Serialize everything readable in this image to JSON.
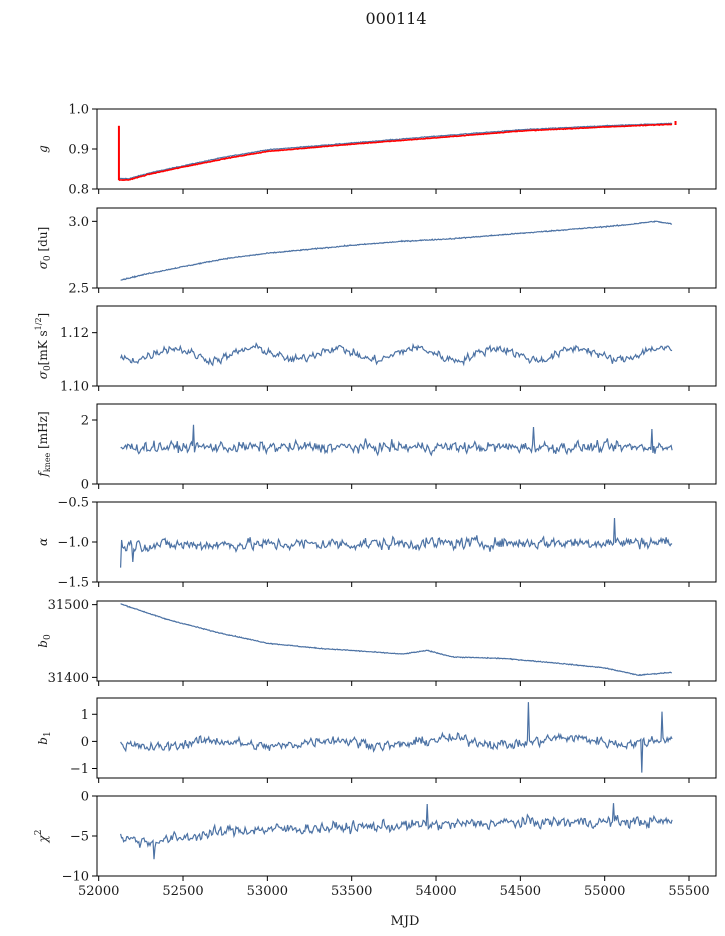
{
  "figure": {
    "title": "000114",
    "xlabel": "MJD"
  },
  "chart_data": {
    "type": "line",
    "shared_x": {
      "label": "MJD",
      "range": [
        51990,
        55660
      ],
      "ticks": [
        52000,
        52500,
        53000,
        53500,
        54000,
        54500,
        55000,
        55500
      ],
      "tick_labels": [
        "52000",
        "52500",
        "53000",
        "53500",
        "54000",
        "54500",
        "55000",
        "55500"
      ]
    },
    "series_color": "#4c72a4",
    "overlay_color": "#ff0000",
    "panels": [
      {
        "id": "g",
        "ylabel": "g",
        "ylim": [
          0.8,
          1.0
        ],
        "yticks": [
          0.8,
          0.9,
          1.0
        ],
        "ytick_labels": [
          "0.8",
          "0.9",
          "1.0"
        ],
        "style": "smooth",
        "x": [
          52120,
          52180,
          52300,
          52500,
          52750,
          53000,
          53500,
          54000,
          54500,
          55000,
          55400
        ],
        "y": [
          0.826,
          0.826,
          0.84,
          0.858,
          0.88,
          0.898,
          0.915,
          0.932,
          0.948,
          0.958,
          0.964
        ],
        "noise": 0.001,
        "overlay": {
          "name": "",
          "color": "#ff0000",
          "x": [
            52120,
            52180,
            52300,
            52500,
            52750,
            53000,
            53500,
            54000,
            54500,
            55000,
            55400
          ],
          "y": [
            0.822,
            0.823,
            0.837,
            0.855,
            0.876,
            0.894,
            0.912,
            0.928,
            0.945,
            0.955,
            0.962
          ],
          "spikes": [
            {
              "x": 52120,
              "from": 0.822,
              "to": 0.958
            },
            {
              "x": 55420,
              "from": 0.96,
              "to": 0.97
            }
          ]
        }
      },
      {
        "id": "sigma0_du",
        "ylabel": "σ0 [du]",
        "ylim": [
          2.5,
          3.1
        ],
        "yticks": [
          2.5,
          3.0
        ],
        "ytick_labels": [
          "2.5",
          "3.0"
        ],
        "style": "smooth",
        "x": [
          52130,
          52300,
          52500,
          52750,
          53000,
          53250,
          53500,
          53800,
          54100,
          54500,
          54800,
          55100,
          55300,
          55400
        ],
        "y": [
          2.56,
          2.61,
          2.66,
          2.72,
          2.76,
          2.79,
          2.82,
          2.85,
          2.87,
          2.91,
          2.94,
          2.97,
          3.0,
          2.98
        ],
        "noise": 0.004
      },
      {
        "id": "sigma0_mk",
        "ylabel": "σ0[mK s^1/2]",
        "ylim": [
          1.1,
          1.13
        ],
        "yticks": [
          1.1,
          1.12
        ],
        "ytick_labels": [
          "1.10",
          "1.12"
        ],
        "style": "noisy",
        "x": [
          52130,
          55400
        ],
        "y": [
          1.112,
          1.112
        ],
        "noise": 0.0015,
        "waves": [
          {
            "period": 480,
            "amp": 0.0022
          }
        ]
      },
      {
        "id": "fknee",
        "ylabel": "fknee [mHz]",
        "ylim": [
          0,
          2.5
        ],
        "yticks": [
          0,
          2
        ],
        "ytick_labels": [
          "0",
          "2"
        ],
        "style": "noisy",
        "x": [
          52130,
          55400
        ],
        "y": [
          1.15,
          1.15
        ],
        "noise": 0.16,
        "spikes": [
          {
            "x": 52560,
            "y": 1.85
          },
          {
            "x": 54580,
            "y": 1.78
          },
          {
            "x": 55280,
            "y": 1.72
          }
        ]
      },
      {
        "id": "alpha",
        "ylabel": "α",
        "ylim": [
          -1.5,
          -0.5
        ],
        "yticks": [
          -1.5,
          -1.0,
          -0.5
        ],
        "ytick_labels": [
          "−1.5",
          "−1.0",
          "−0.5"
        ],
        "style": "noisy",
        "x": [
          52130,
          55400
        ],
        "y": [
          -1.04,
          -1.0
        ],
        "noise": 0.07,
        "spikes": [
          {
            "x": 52130,
            "y": -1.32
          },
          {
            "x": 55060,
            "y": -0.7
          },
          {
            "x": 52200,
            "y": -1.25
          }
        ]
      },
      {
        "id": "b0",
        "ylabel": "b0",
        "ylim": [
          31395,
          31505
        ],
        "yticks": [
          31400,
          31500
        ],
        "ytick_labels": [
          "31400",
          "31500"
        ],
        "style": "smooth",
        "x": [
          52130,
          52400,
          52700,
          53000,
          53300,
          53500,
          53800,
          53950,
          54100,
          54400,
          54700,
          55000,
          55200,
          55400
        ],
        "y": [
          31501,
          31480,
          31462,
          31447,
          31440,
          31437,
          31432,
          31437,
          31428,
          31426,
          31420,
          31413,
          31403,
          31407
        ],
        "noise": 0.6
      },
      {
        "id": "b1",
        "ylabel": "b1",
        "ylim": [
          -1.35,
          1.6
        ],
        "yticks": [
          -1,
          0,
          1
        ],
        "ytick_labels": [
          "−1",
          "0",
          "1"
        ],
        "style": "noisy",
        "x": [
          52130,
          55400
        ],
        "y": [
          -0.12,
          0.05
        ],
        "noise": 0.17,
        "waves": [
          {
            "period": 700,
            "amp": 0.12
          }
        ],
        "spikes": [
          {
            "x": 54550,
            "y": 1.45
          },
          {
            "x": 55340,
            "y": 1.1
          },
          {
            "x": 55220,
            "y": -1.15
          }
        ]
      },
      {
        "id": "chi2",
        "ylabel": "χ2",
        "ylim": [
          -10,
          0
        ],
        "yticks": [
          -10,
          -5,
          0
        ],
        "ytick_labels": [
          "−10",
          "−5",
          "0"
        ],
        "style": "noisy",
        "x": [
          52130,
          52300,
          52800,
          53500,
          54500,
          55400
        ],
        "y": [
          -5.2,
          -5.8,
          -4.3,
          -3.9,
          -3.3,
          -3.2
        ],
        "noise": 0.65,
        "spikes": [
          {
            "x": 53950,
            "y": -1.0
          },
          {
            "x": 55050,
            "y": -0.9
          },
          {
            "x": 52330,
            "y": -7.9
          }
        ]
      }
    ]
  }
}
